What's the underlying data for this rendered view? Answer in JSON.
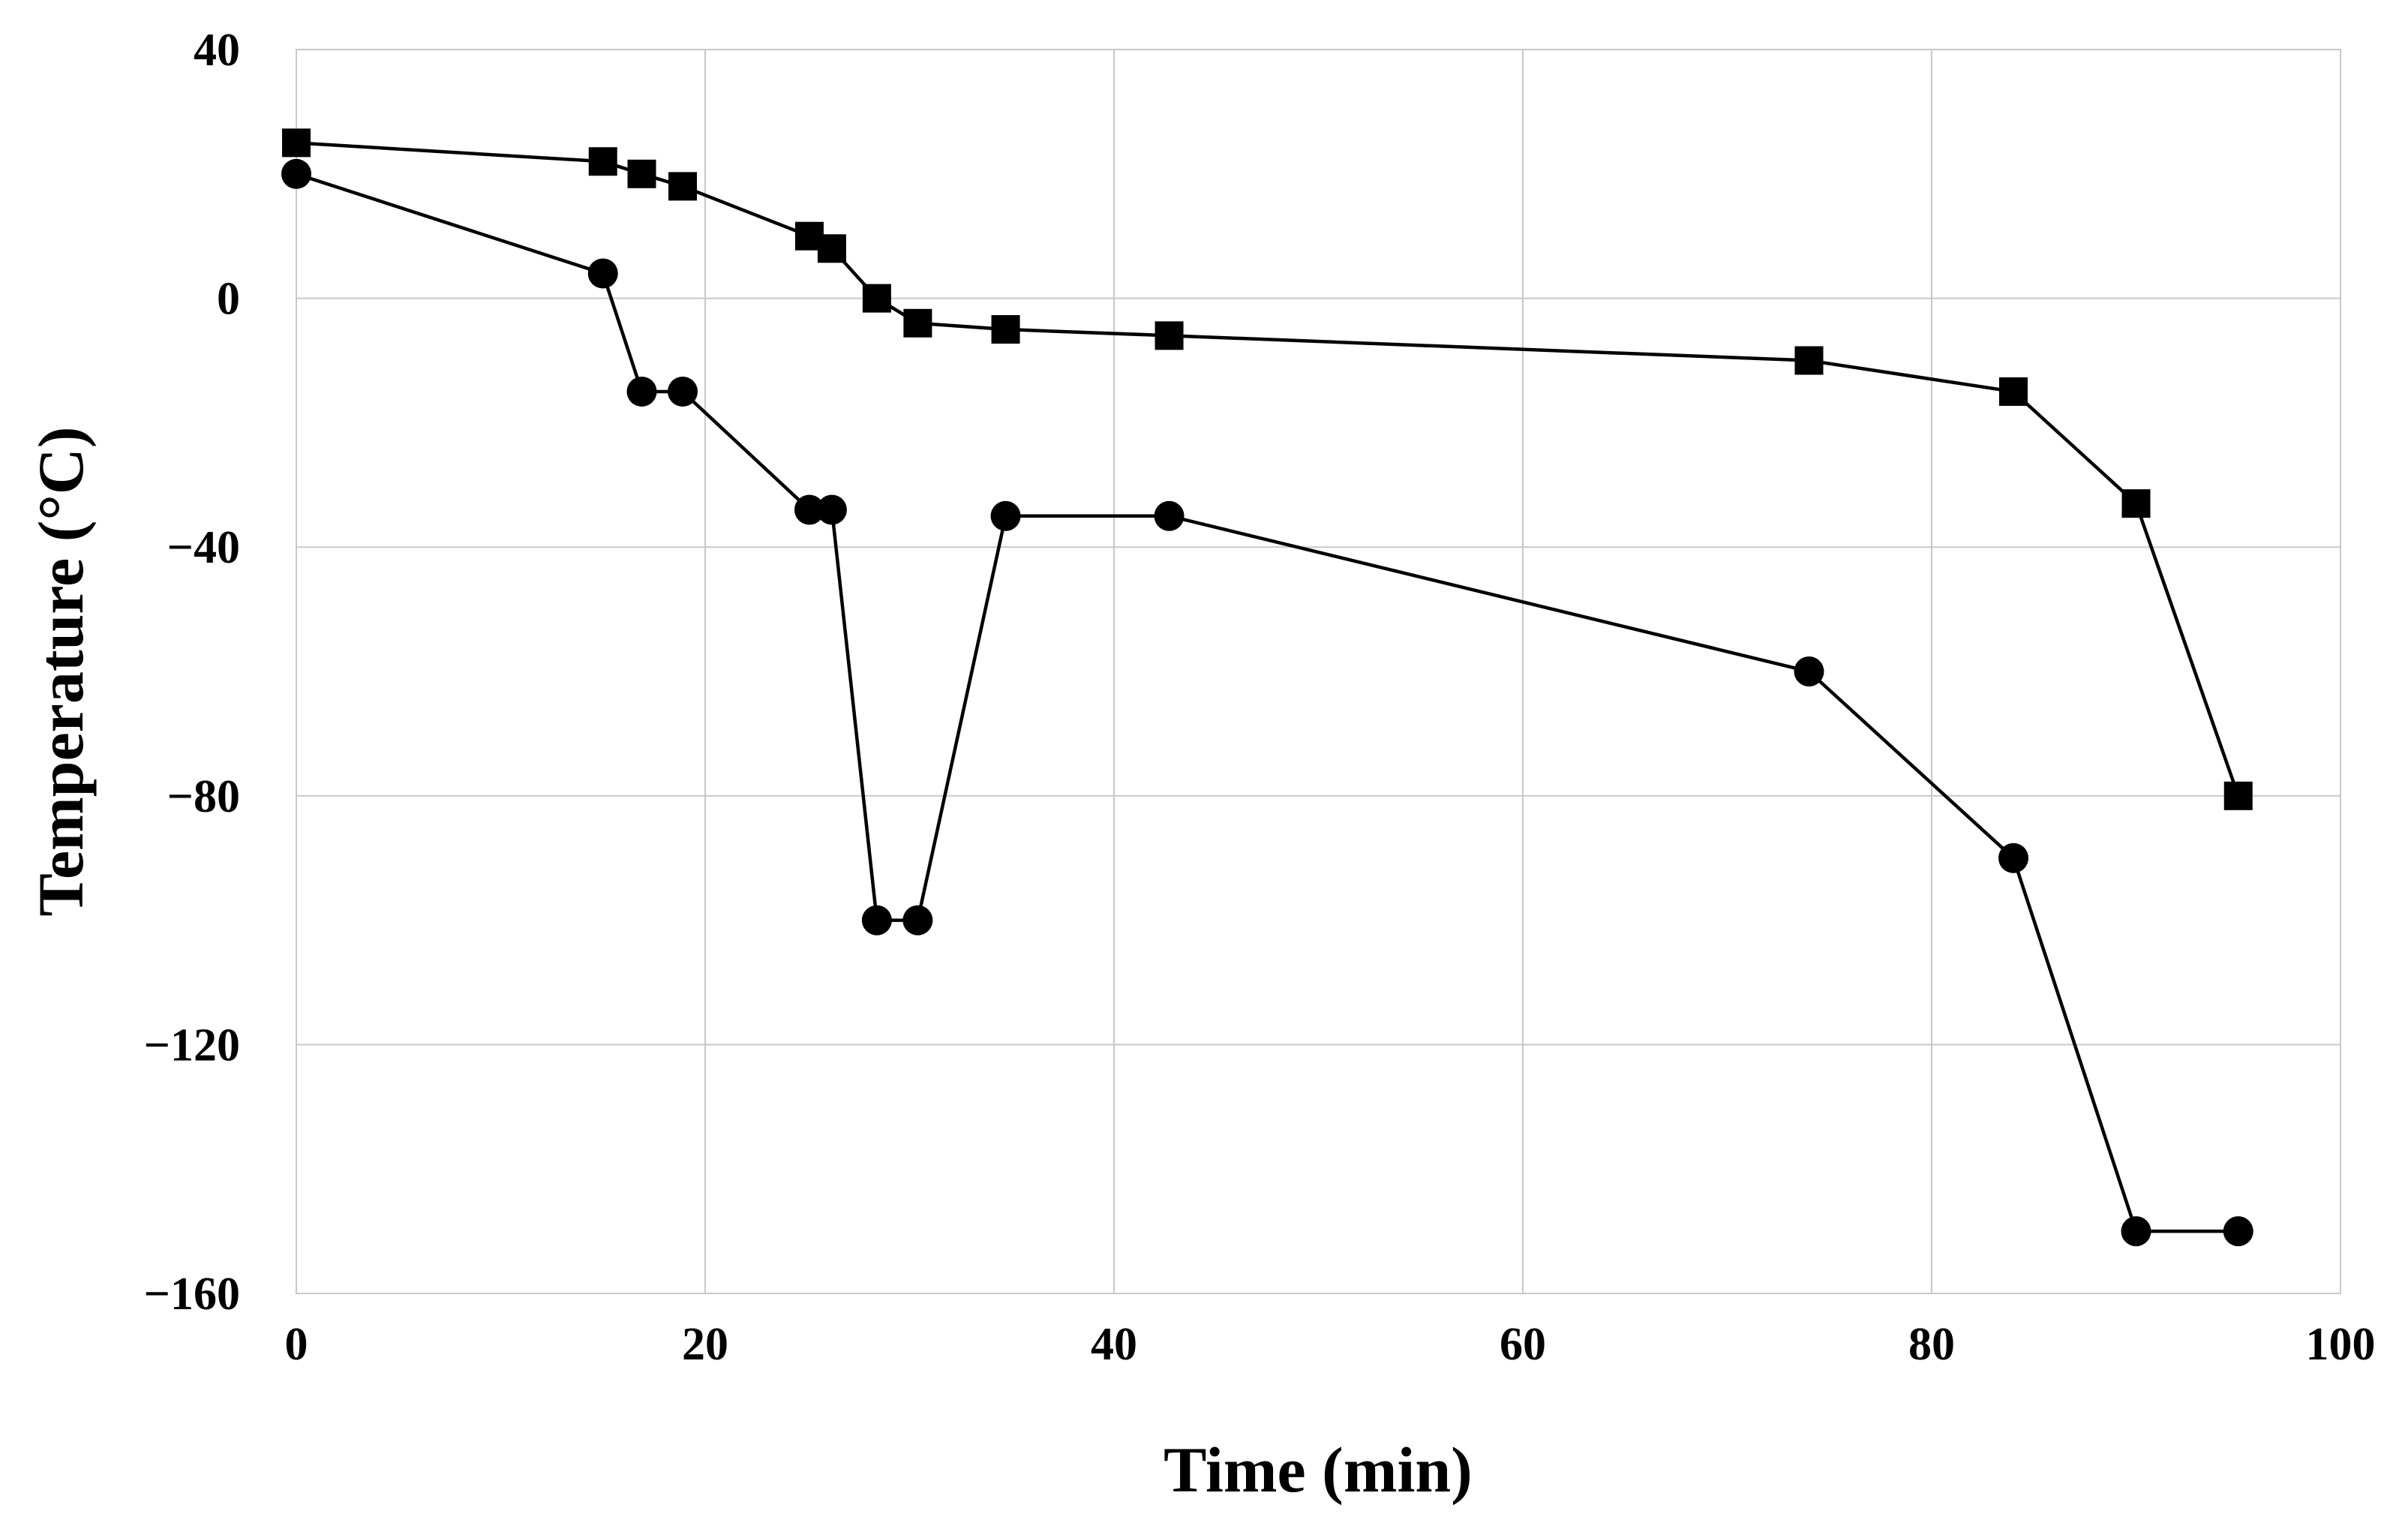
{
  "chart_data": {
    "type": "line",
    "title": "",
    "xlabel": "Time (min)",
    "ylabel": "Temperature (°C)",
    "xlim": [
      0,
      100
    ],
    "ylim": [
      -160,
      40
    ],
    "x_ticks": [
      0,
      20,
      40,
      60,
      80,
      100
    ],
    "y_ticks": [
      40,
      0,
      -40,
      -80,
      -120,
      -160
    ],
    "x_tick_labels": [
      "0",
      "20",
      "40",
      "60",
      "80",
      "100"
    ],
    "y_tick_labels": [
      "40",
      "0",
      "−40",
      "−80",
      "−120",
      "−160"
    ],
    "grid": true,
    "legend": "none",
    "series": [
      {
        "name": "square-markers",
        "marker": "square",
        "x": [
          0,
          15,
          16.9,
          18.9,
          25.1,
          26.2,
          28.4,
          30.4,
          34.7,
          42.7,
          74,
          84,
          90,
          95
        ],
        "y": [
          25,
          22,
          20,
          18,
          10,
          8,
          0,
          -4,
          -5,
          -6,
          -10,
          -15,
          -33,
          -80
        ]
      },
      {
        "name": "circle-markers",
        "marker": "circle",
        "x": [
          0,
          15,
          16.9,
          18.9,
          25.1,
          26.2,
          28.4,
          30.4,
          34.7,
          42.7,
          74,
          84,
          90,
          95
        ],
        "y": [
          20,
          4,
          -15,
          -15,
          -34,
          -34,
          -100,
          -100,
          -35,
          -35,
          -60,
          -90,
          -150,
          -150
        ]
      }
    ]
  }
}
